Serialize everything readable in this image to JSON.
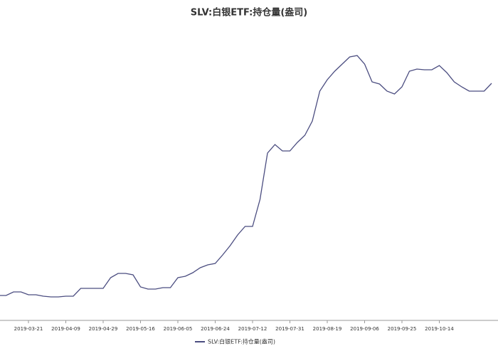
{
  "chart_data": {
    "type": "line",
    "title": "SLV:白银ETF:持仓量(盎司)",
    "categories": [
      null,
      null,
      null,
      null,
      "2019-03-21",
      null,
      null,
      null,
      null,
      "2019-04-09",
      null,
      null,
      null,
      null,
      "2019-04-29",
      null,
      null,
      null,
      null,
      "2019-05-16",
      null,
      null,
      null,
      null,
      "2019-06-05",
      null,
      null,
      null,
      null,
      "2019-06-24",
      null,
      null,
      null,
      null,
      "2019-07-12",
      null,
      null,
      null,
      null,
      "2019-07-31",
      null,
      null,
      null,
      null,
      "2019-08-19",
      null,
      null,
      null,
      null,
      "2019-09-06",
      null,
      null,
      null,
      null,
      "2019-09-25",
      null,
      null,
      null,
      null,
      "2019-10-14",
      null,
      null,
      null,
      null,
      null,
      null,
      null
    ],
    "series": [
      {
        "name": "SLV:白银ETF:持仓量(盎司)",
        "color": "#4b4d80",
        "values": [
          35,
          35,
          40,
          40,
          36,
          36,
          34,
          33,
          33,
          34,
          34,
          45,
          45,
          45,
          45,
          60,
          66,
          66,
          64,
          47,
          44,
          44,
          46,
          46,
          60,
          62,
          67,
          74,
          78,
          80,
          92,
          105,
          120,
          132,
          132,
          170,
          235,
          247,
          238,
          238,
          250,
          260,
          280,
          322,
          338,
          350,
          360,
          370,
          372,
          360,
          335,
          332,
          322,
          318,
          328,
          350,
          353,
          352,
          352,
          358,
          348,
          335,
          328,
          322,
          322,
          322,
          333
        ]
      }
    ],
    "ylim": [
      0,
      400
    ],
    "legend": "bottom"
  }
}
